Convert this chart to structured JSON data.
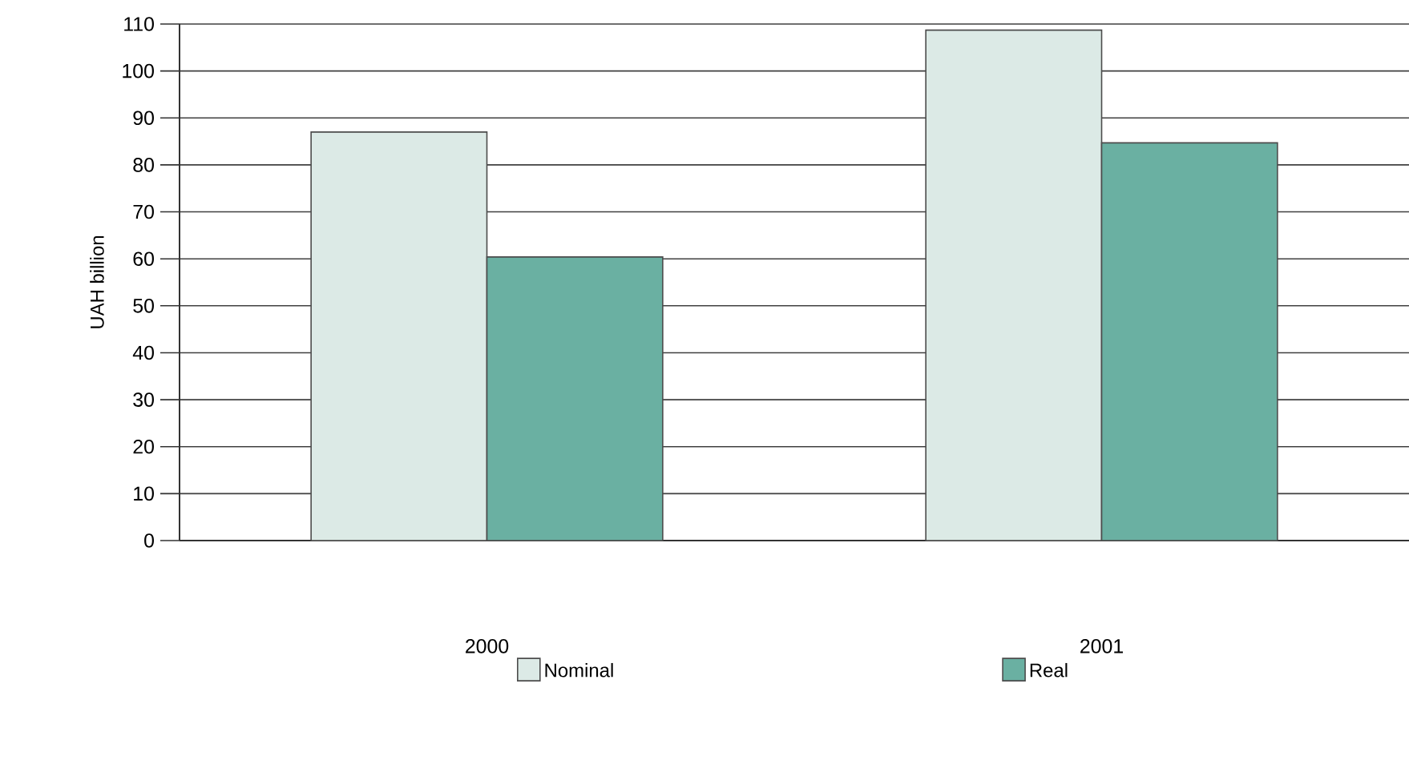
{
  "chart_data": {
    "type": "bar",
    "ylabel": "UAH billion",
    "categories": [
      "2000",
      "2001"
    ],
    "series": [
      {
        "name": "Nominal",
        "color": "#dceae6",
        "values": [
          87,
          108.7
        ]
      },
      {
        "name": "Real",
        "color": "#6ab0a2",
        "values": [
          60.4,
          84.7
        ]
      }
    ],
    "ylim": [
      0,
      110
    ],
    "yticks": [
      0,
      10,
      20,
      30,
      40,
      50,
      60,
      70,
      80,
      90,
      100,
      110
    ],
    "grid": "y",
    "legend": "bottom"
  }
}
